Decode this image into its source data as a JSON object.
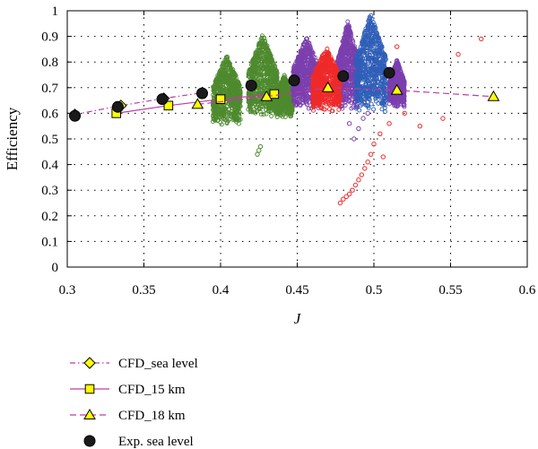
{
  "chart_data": {
    "type": "scatter",
    "xlabel": "J",
    "ylabel": "Efficiency",
    "xlim": [
      0.3,
      0.6
    ],
    "ylim": [
      0,
      1
    ],
    "x_ticks": [
      "0.3",
      "0.35",
      "0.4",
      "0.45",
      "0.5",
      "0.55",
      "0.6"
    ],
    "y_ticks": [
      "0",
      "0.1",
      "0.2",
      "0.3",
      "0.4",
      "0.5",
      "0.6",
      "0.7",
      "0.8",
      "0.9",
      "1"
    ],
    "grid": "dotted",
    "legend_position": "below",
    "series": [
      {
        "name": "CFD_sea level",
        "marker": "diamond",
        "line": "dash-dot",
        "color": "#c03aa5",
        "marker_color": "#ffff00",
        "x": [
          0.305,
          0.335,
          0.363,
          0.388
        ],
        "y": [
          0.595,
          0.63,
          0.658,
          0.68
        ]
      },
      {
        "name": "CFD_15 km",
        "marker": "square",
        "line": "solid",
        "color": "#c03aa5",
        "marker_color": "#ffff00",
        "x": [
          0.332,
          0.366,
          0.4,
          0.435
        ],
        "y": [
          0.6,
          0.63,
          0.655,
          0.675
        ]
      },
      {
        "name": "CFD_18 km",
        "marker": "triangle",
        "line": "dashed",
        "color": "#c03aa5",
        "marker_color": "#ffff00",
        "x": [
          0.385,
          0.43,
          0.47,
          0.515,
          0.578
        ],
        "y": [
          0.635,
          0.665,
          0.7,
          0.69,
          0.665
        ]
      },
      {
        "name": "Exp. sea level",
        "marker": "circle",
        "line": "none",
        "color": "#000000",
        "marker_color": "#1a1a1a",
        "x": [
          0.305,
          0.333,
          0.362,
          0.388,
          0.42,
          0.448,
          0.48,
          0.51
        ],
        "y": [
          0.59,
          0.625,
          0.655,
          0.678,
          0.708,
          0.728,
          0.745,
          0.758
        ]
      }
    ],
    "clouds": [
      {
        "color": "#4e8a2e",
        "x_range": [
          0.395,
          0.413
        ],
        "y_range": [
          0.55,
          0.83
        ]
      },
      {
        "color": "#4e8a2e",
        "x_range": [
          0.418,
          0.437
        ],
        "y_range": [
          0.58,
          0.91
        ]
      },
      {
        "color": "#4e8a2e",
        "x_range": [
          0.436,
          0.447
        ],
        "y_range": [
          0.58,
          0.75
        ]
      },
      {
        "color": "#7b3fae",
        "x_range": [
          0.447,
          0.465
        ],
        "y_range": [
          0.61,
          0.9
        ]
      },
      {
        "color": "#7b3fae",
        "x_range": [
          0.476,
          0.49
        ],
        "y_range": [
          0.61,
          0.96
        ]
      },
      {
        "color": "#7b3fae",
        "x_range": [
          0.51,
          0.52
        ],
        "y_range": [
          0.62,
          0.81
        ]
      },
      {
        "color": "#ee2a2a",
        "x_range": [
          0.46,
          0.478
        ],
        "y_range": [
          0.6,
          0.86
        ]
      },
      {
        "color": "#2f5fb8",
        "x_range": [
          0.488,
          0.508
        ],
        "y_range": [
          0.6,
          0.99
        ]
      }
    ],
    "outliers_red": {
      "color": "#ee2a2a",
      "x": [
        0.478,
        0.48,
        0.482,
        0.484,
        0.486,
        0.488,
        0.49,
        0.492,
        0.494,
        0.496,
        0.498,
        0.5,
        0.504,
        0.51,
        0.52,
        0.53,
        0.545,
        0.555,
        0.57,
        0.506,
        0.515
      ],
      "y": [
        0.25,
        0.265,
        0.275,
        0.285,
        0.3,
        0.32,
        0.34,
        0.36,
        0.385,
        0.41,
        0.44,
        0.48,
        0.52,
        0.56,
        0.6,
        0.55,
        0.58,
        0.83,
        0.89,
        0.43,
        0.86
      ]
    },
    "outliers_purple": {
      "color": "#7b3fae",
      "x": [
        0.484,
        0.487,
        0.49,
        0.493,
        0.496
      ],
      "y": [
        0.56,
        0.5,
        0.54,
        0.58,
        0.6
      ]
    },
    "outliers_green": {
      "color": "#4e8a2e",
      "x": [
        0.424,
        0.425,
        0.426
      ],
      "y": [
        0.44,
        0.455,
        0.47
      ]
    }
  }
}
